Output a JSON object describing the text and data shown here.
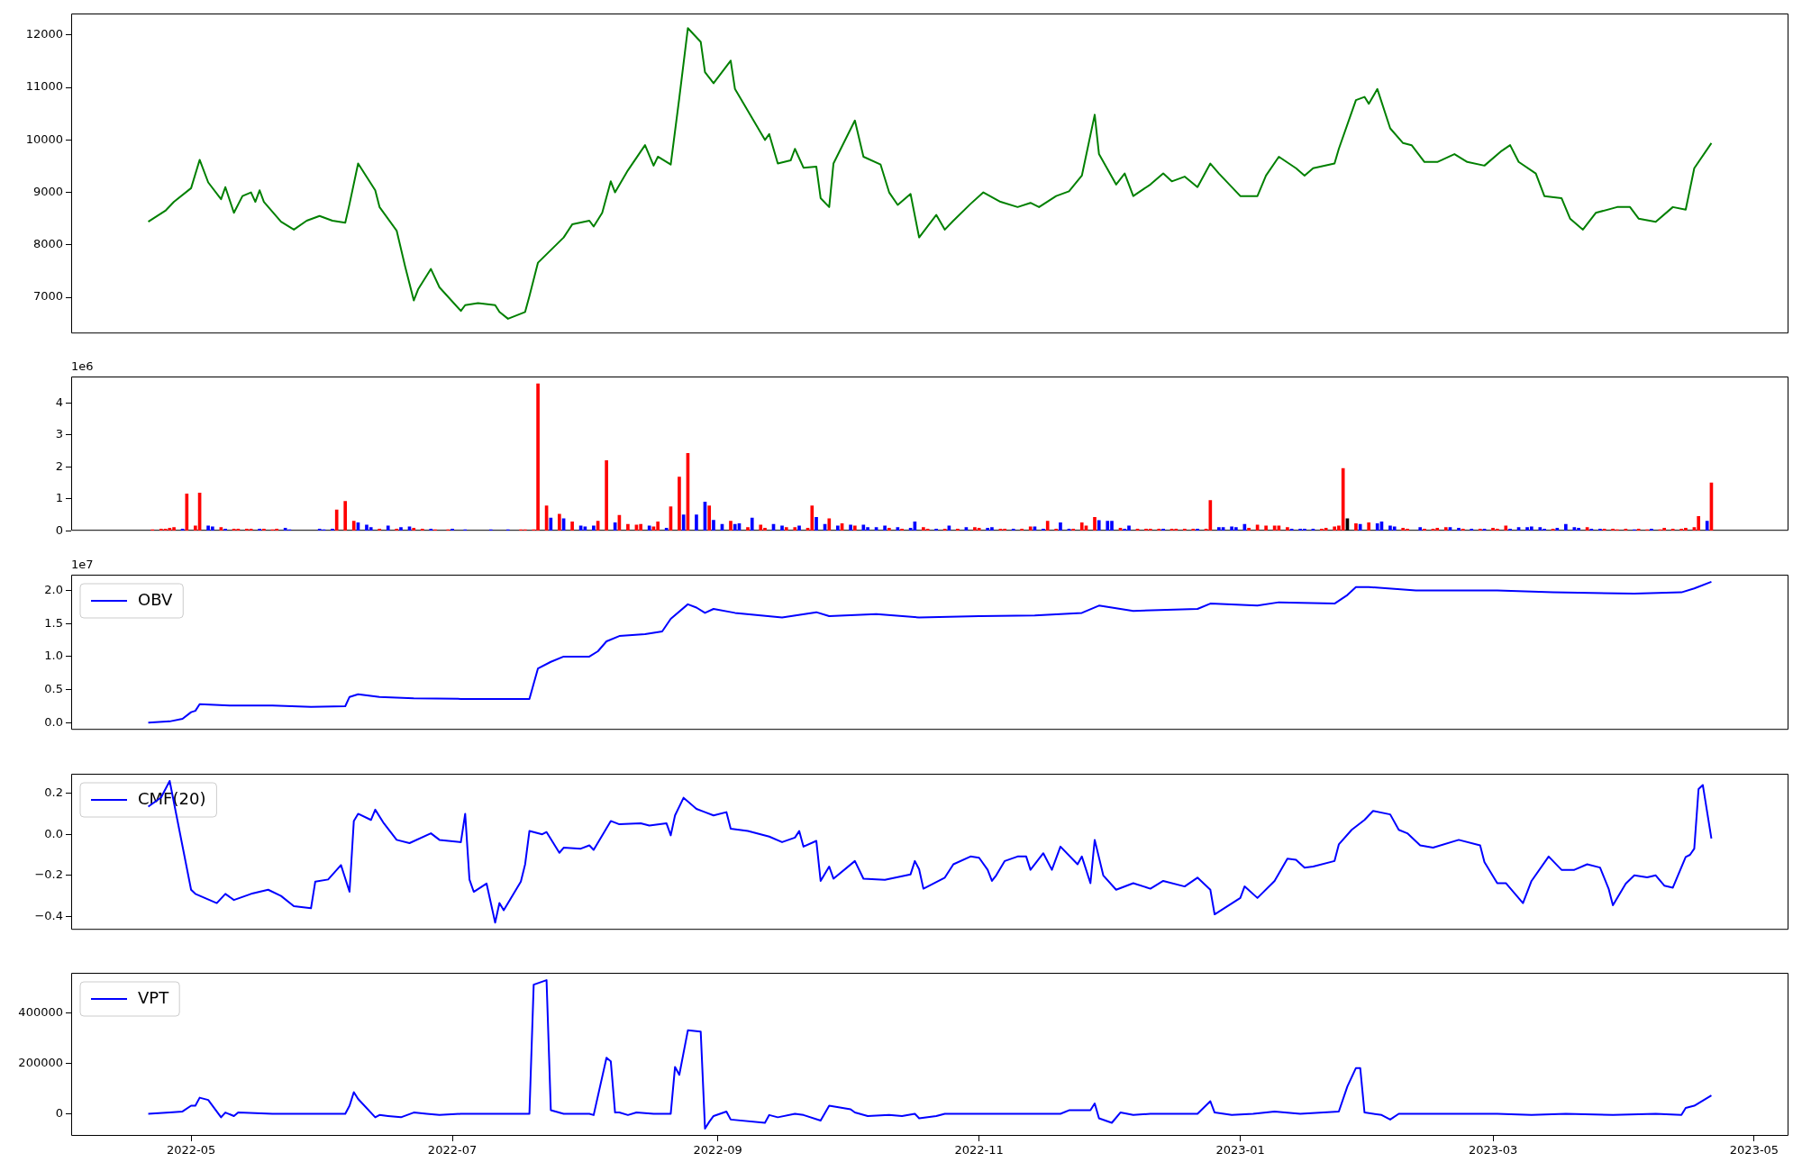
{
  "chart_data": [
    {
      "type": "line",
      "tick_labels": "y",
      "xlim": [
        "2022-04-03",
        "2023-05-09"
      ],
      "ylim": [
        6310,
        12410
      ],
      "yticks": [
        7000,
        8000,
        9000,
        10000,
        11000,
        12000
      ],
      "x": [
        "2022-04-21",
        "2022-04-25",
        "2022-04-27",
        "2022-05-01",
        "2022-05-03",
        "2022-05-05",
        "2022-05-08",
        "2022-05-09",
        "2022-05-11",
        "2022-05-13",
        "2022-05-15",
        "2022-05-16",
        "2022-05-17",
        "2022-05-18",
        "2022-05-22",
        "2022-05-25",
        "2022-05-28",
        "2022-05-31",
        "2022-06-03",
        "2022-06-06",
        "2022-06-07",
        "2022-06-09",
        "2022-06-13",
        "2022-06-14",
        "2022-06-18",
        "2022-06-20",
        "2022-06-22",
        "2022-06-23",
        "2022-06-26",
        "2022-06-28",
        "2022-07-03",
        "2022-07-04",
        "2022-07-07",
        "2022-07-11",
        "2022-07-12",
        "2022-07-14",
        "2022-07-18",
        "2022-07-19",
        "2022-07-21",
        "2022-07-24",
        "2022-07-27",
        "2022-07-29",
        "2022-08-02",
        "2022-08-03",
        "2022-08-05",
        "2022-08-07",
        "2022-08-08",
        "2022-08-11",
        "2022-08-15",
        "2022-08-17",
        "2022-08-18",
        "2022-08-21",
        "2022-08-23",
        "2022-08-25",
        "2022-08-28",
        "2022-08-29",
        "2022-08-31",
        "2022-09-04",
        "2022-09-05",
        "2022-09-12",
        "2022-09-13",
        "2022-09-15",
        "2022-09-18",
        "2022-09-19",
        "2022-09-21",
        "2022-09-24",
        "2022-09-25",
        "2022-09-27",
        "2022-09-28",
        "2022-10-03",
        "2022-10-05",
        "2022-10-09",
        "2022-10-11",
        "2022-10-13",
        "2022-10-16",
        "2022-10-18",
        "2022-10-22",
        "2022-10-24",
        "2022-10-26",
        "2022-10-30",
        "2022-11-02",
        "2022-11-06",
        "2022-11-10",
        "2022-11-13",
        "2022-11-15",
        "2022-11-19",
        "2022-11-22",
        "2022-11-25",
        "2022-11-28",
        "2022-11-29",
        "2022-12-03",
        "2022-12-05",
        "2022-12-07",
        "2022-12-11",
        "2022-12-14",
        "2022-12-16",
        "2022-12-19",
        "2022-12-22",
        "2022-12-25",
        "2022-12-27",
        "2023-01-01",
        "2023-01-05",
        "2023-01-07",
        "2023-01-10",
        "2023-01-14",
        "2023-01-16",
        "2023-01-18",
        "2023-01-23",
        "2023-01-24",
        "2023-01-28",
        "2023-01-30",
        "2023-01-31",
        "2023-02-02",
        "2023-02-05",
        "2023-02-08",
        "2023-02-10",
        "2023-02-13",
        "2023-02-16",
        "2023-02-20",
        "2023-02-23",
        "2023-02-27",
        "2023-03-03",
        "2023-03-05",
        "2023-03-07",
        "2023-03-11",
        "2023-03-13",
        "2023-03-17",
        "2023-03-19",
        "2023-03-22",
        "2023-03-25",
        "2023-03-30",
        "2023-04-02",
        "2023-04-04",
        "2023-04-08",
        "2023-04-12",
        "2023-04-15",
        "2023-04-17",
        "2023-04-21"
      ],
      "color": "#008000",
      "values": [
        8440,
        8650,
        8820,
        9080,
        9620,
        9190,
        8870,
        9100,
        8610,
        8930,
        9000,
        8820,
        9040,
        8820,
        8440,
        8290,
        8460,
        8550,
        8460,
        8420,
        8780,
        9550,
        9040,
        8720,
        8270,
        7580,
        6940,
        7150,
        7540,
        7190,
        6740,
        6850,
        6890,
        6850,
        6720,
        6590,
        6720,
        7020,
        7660,
        7900,
        8140,
        8390,
        8460,
        8350,
        8610,
        9210,
        9000,
        9420,
        9900,
        9510,
        9680,
        9530,
        10800,
        12130,
        11870,
        11290,
        11080,
        11510,
        10970,
        10000,
        10110,
        9550,
        9610,
        9830,
        9470,
        9490,
        8890,
        8720,
        9550,
        10370,
        9680,
        9530,
        9000,
        8760,
        8970,
        8140,
        8570,
        8290,
        8460,
        8780,
        9000,
        8820,
        8720,
        8800,
        8720,
        8930,
        9020,
        9320,
        10480,
        9730,
        9150,
        9360,
        8930,
        9150,
        9360,
        9210,
        9300,
        9100,
        9550,
        9360,
        8930,
        8930,
        9320,
        9680,
        9460,
        9320,
        9460,
        9550,
        9830,
        10760,
        10820,
        10690,
        10970,
        10220,
        9940,
        9900,
        9580,
        9580,
        9730,
        9580,
        9510,
        9790,
        9900,
        9580,
        9360,
        8930,
        8890,
        8500,
        8290,
        8610,
        8720,
        8720,
        8500,
        8440,
        8720,
        8670,
        9460,
        9940
      ]
    },
    {
      "type": "bar",
      "tick_labels": "y",
      "annotations": [
        "1e6"
      ],
      "xlim": [
        "2022-04-03",
        "2023-05-09"
      ],
      "ylim": [
        0,
        4.83
      ],
      "yticks": [
        0,
        1,
        2,
        3,
        4
      ],
      "x": [
        "2022-04-22",
        "2022-04-24",
        "2022-04-25",
        "2022-04-26",
        "2022-04-27",
        "2022-04-29",
        "2022-04-30",
        "2022-05-02",
        "2022-05-03",
        "2022-05-05",
        "2022-05-06",
        "2022-05-08",
        "2022-05-09",
        "2022-05-11",
        "2022-05-12",
        "2022-05-14",
        "2022-05-15",
        "2022-05-17",
        "2022-05-18",
        "2022-05-20",
        "2022-05-21",
        "2022-05-23",
        "2022-05-24",
        "2022-05-31",
        "2022-06-01",
        "2022-06-03",
        "2022-06-04",
        "2022-06-06",
        "2022-06-08",
        "2022-06-09",
        "2022-06-11",
        "2022-06-12",
        "2022-06-14",
        "2022-06-16",
        "2022-06-18",
        "2022-06-19",
        "2022-06-21",
        "2022-06-22",
        "2022-06-24",
        "2022-06-26",
        "2022-06-27",
        "2022-06-30",
        "2022-07-01",
        "2022-07-04",
        "2022-07-10",
        "2022-07-14",
        "2022-07-17",
        "2022-07-18",
        "2022-07-20",
        "2022-07-21",
        "2022-07-23",
        "2022-07-24",
        "2022-07-26",
        "2022-07-27",
        "2022-07-29",
        "2022-07-31",
        "2022-08-01",
        "2022-08-03",
        "2022-08-04",
        "2022-08-06",
        "2022-08-08",
        "2022-08-09",
        "2022-08-11",
        "2022-08-13",
        "2022-08-14",
        "2022-08-16",
        "2022-08-17",
        "2022-08-18",
        "2022-08-20",
        "2022-08-21",
        "2022-08-23",
        "2022-08-24",
        "2022-08-25",
        "2022-08-27",
        "2022-08-29",
        "2022-08-30",
        "2022-08-31",
        "2022-09-02",
        "2022-09-04",
        "2022-09-05",
        "2022-09-06",
        "2022-09-08",
        "2022-09-09",
        "2022-09-11",
        "2022-09-12",
        "2022-09-14",
        "2022-09-16",
        "2022-09-17",
        "2022-09-19",
        "2022-09-20",
        "2022-09-22",
        "2022-09-23",
        "2022-09-24",
        "2022-09-26",
        "2022-09-27",
        "2022-09-29",
        "2022-09-30",
        "2022-10-02",
        "2022-10-03",
        "2022-10-05",
        "2022-10-06",
        "2022-10-08",
        "2022-10-10",
        "2022-10-11",
        "2022-10-13",
        "2022-10-14",
        "2022-10-16",
        "2022-10-17",
        "2022-10-19",
        "2022-10-20",
        "2022-10-22",
        "2022-10-24",
        "2022-10-25",
        "2022-10-27",
        "2022-10-29",
        "2022-10-31",
        "2022-11-01",
        "2022-11-03",
        "2022-11-04",
        "2022-11-06",
        "2022-11-07",
        "2022-11-09",
        "2022-11-11",
        "2022-11-13",
        "2022-11-14",
        "2022-11-16",
        "2022-11-17",
        "2022-11-19",
        "2022-11-20",
        "2022-11-22",
        "2022-11-23",
        "2022-11-25",
        "2022-11-26",
        "2022-11-28",
        "2022-11-29",
        "2022-12-01",
        "2022-12-02",
        "2022-12-04",
        "2022-12-05",
        "2022-12-06",
        "2022-12-08",
        "2022-12-10",
        "2022-12-11",
        "2022-12-13",
        "2022-12-14",
        "2022-12-16",
        "2022-12-17",
        "2022-12-19",
        "2022-12-21",
        "2022-12-22",
        "2022-12-24",
        "2022-12-25",
        "2022-12-27",
        "2022-12-28",
        "2022-12-30",
        "2022-12-31",
        "2023-01-02",
        "2023-01-03",
        "2023-01-05",
        "2023-01-07",
        "2023-01-09",
        "2023-01-10",
        "2023-01-12",
        "2023-01-13",
        "2023-01-15",
        "2023-01-16",
        "2023-01-18",
        "2023-01-20",
        "2023-01-21",
        "2023-01-23",
        "2023-01-24",
        "2023-01-25",
        "2023-01-26",
        "2023-01-28",
        "2023-01-29",
        "2023-01-31",
        "2023-02-02",
        "2023-02-03",
        "2023-02-05",
        "2023-02-06",
        "2023-02-08",
        "2023-02-09",
        "2023-02-12",
        "2023-02-13",
        "2023-02-15",
        "2023-02-16",
        "2023-02-18",
        "2023-02-19",
        "2023-02-21",
        "2023-02-22",
        "2023-02-24",
        "2023-02-26",
        "2023-02-27",
        "2023-03-01",
        "2023-03-02",
        "2023-03-04",
        "2023-03-05",
        "2023-03-07",
        "2023-03-09",
        "2023-03-10",
        "2023-03-12",
        "2023-03-13",
        "2023-03-15",
        "2023-03-16",
        "2023-03-18",
        "2023-03-20",
        "2023-03-21",
        "2023-03-23",
        "2023-03-24",
        "2023-03-26",
        "2023-03-27",
        "2023-03-29",
        "2023-03-30",
        "2023-04-01",
        "2023-04-03",
        "2023-04-04",
        "2023-04-06",
        "2023-04-07",
        "2023-04-09",
        "2023-04-10",
        "2023-04-12",
        "2023-04-14",
        "2023-04-15",
        "2023-04-17",
        "2023-04-18",
        "2023-04-20",
        "2023-04-21"
      ],
      "values": [
        0.03,
        0.05,
        0.05,
        0.08,
        0.1,
        0.05,
        1.15,
        0.15,
        1.18,
        0.15,
        0.12,
        0.1,
        0.05,
        0.05,
        0.05,
        0.05,
        0.05,
        0.05,
        0.05,
        0.03,
        0.05,
        0.08,
        0.03,
        0.05,
        0.03,
        0.05,
        0.65,
        0.92,
        0.3,
        0.25,
        0.18,
        0.1,
        0.05,
        0.15,
        0.05,
        0.1,
        0.12,
        0.08,
        0.05,
        0.05,
        0.03,
        0.03,
        0.05,
        0.03,
        0.03,
        0.03,
        0.03,
        0.03,
        0.03,
        4.6,
        0.78,
        0.4,
        0.52,
        0.38,
        0.28,
        0.15,
        0.12,
        0.15,
        0.3,
        2.2,
        0.25,
        0.48,
        0.2,
        0.18,
        0.2,
        0.15,
        0.12,
        0.28,
        0.08,
        0.75,
        1.68,
        0.5,
        2.42,
        0.5,
        0.9,
        0.78,
        0.33,
        0.2,
        0.3,
        0.2,
        0.22,
        0.1,
        0.4,
        0.18,
        0.08,
        0.2,
        0.15,
        0.1,
        0.1,
        0.15,
        0.08,
        0.78,
        0.42,
        0.2,
        0.38,
        0.15,
        0.22,
        0.18,
        0.15,
        0.18,
        0.1,
        0.1,
        0.15,
        0.08,
        0.1,
        0.05,
        0.08,
        0.28,
        0.1,
        0.05,
        0.05,
        0.05,
        0.15,
        0.05,
        0.1,
        0.1,
        0.08,
        0.08,
        0.1,
        0.05,
        0.05,
        0.05,
        0.05,
        0.12,
        0.12,
        0.05,
        0.3,
        0.05,
        0.25,
        0.05,
        0.05,
        0.25,
        0.15,
        0.42,
        0.32,
        0.3,
        0.3,
        0.08,
        0.05,
        0.15,
        0.05,
        0.05,
        0.05,
        0.05,
        0.05,
        0.05,
        0.05,
        0.05,
        0.05,
        0.05,
        0.05,
        0.95,
        0.1,
        0.1,
        0.12,
        0.1,
        0.2,
        0.08,
        0.18,
        0.15,
        0.15,
        0.15,
        0.1,
        0.05,
        0.05,
        0.05,
        0.05,
        0.05,
        0.08,
        0.12,
        0.15,
        1.95,
        0.38,
        0.22,
        0.2,
        0.25,
        0.22,
        0.28,
        0.15,
        0.12,
        0.08,
        0.05,
        0.1,
        0.05,
        0.05,
        0.08,
        0.1,
        0.1,
        0.08,
        0.05,
        0.05,
        0.05,
        0.05,
        0.08,
        0.05,
        0.15,
        0.05,
        0.1,
        0.1,
        0.12,
        0.1,
        0.05,
        0.05,
        0.08,
        0.2,
        0.1,
        0.08,
        0.1,
        0.05,
        0.05,
        0.05,
        0.05,
        0.03,
        0.05,
        0.03,
        0.05,
        0.03,
        0.05,
        0.03,
        0.08,
        0.05,
        0.05,
        0.08,
        0.1,
        0.45,
        0.3,
        1.5
      ],
      "colors": [
        "#ff0000",
        "#ff0000",
        "#ff0000",
        "#ff0000",
        "#ff0000",
        "#0000ff",
        "#ff0000",
        "#ff0000",
        "#ff0000",
        "#0000ff",
        "#0000ff",
        "#ff0000",
        "#0000ff",
        "#ff0000",
        "#ff0000",
        "#ff0000",
        "#ff0000",
        "#0000ff",
        "#ff0000",
        "#ff0000",
        "#ff0000",
        "#0000ff",
        "#0000ff",
        "#0000ff",
        "#0000ff",
        "#0000ff",
        "#ff0000",
        "#ff0000",
        "#ff0000",
        "#0000ff",
        "#0000ff",
        "#0000ff",
        "#ff0000",
        "#0000ff",
        "#ff0000",
        "#0000ff",
        "#0000ff",
        "#ff0000",
        "#ff0000",
        "#0000ff",
        "#ff0000",
        "#ff0000",
        "#0000ff",
        "#0000ff",
        "#0000ff",
        "#0000ff",
        "#ff0000",
        "#ff0000",
        "#ff0000",
        "#ff0000",
        "#ff0000",
        "#0000ff",
        "#ff0000",
        "#0000ff",
        "#ff0000",
        "#0000ff",
        "#0000ff",
        "#0000ff",
        "#ff0000",
        "#ff0000",
        "#0000ff",
        "#ff0000",
        "#ff0000",
        "#ff0000",
        "#ff0000",
        "#0000ff",
        "#ff0000",
        "#ff0000",
        "#0000ff",
        "#ff0000",
        "#ff0000",
        "#0000ff",
        "#ff0000",
        "#0000ff",
        "#0000ff",
        "#ff0000",
        "#0000ff",
        "#0000ff",
        "#ff0000",
        "#0000ff",
        "#0000ff",
        "#ff0000",
        "#0000ff",
        "#ff0000",
        "#ff0000",
        "#0000ff",
        "#0000ff",
        "#ff0000",
        "#ff0000",
        "#0000ff",
        "#ff0000",
        "#ff0000",
        "#0000ff",
        "#0000ff",
        "#ff0000",
        "#0000ff",
        "#ff0000",
        "#0000ff",
        "#ff0000",
        "#0000ff",
        "#0000ff",
        "#0000ff",
        "#0000ff",
        "#ff0000",
        "#0000ff",
        "#ff0000",
        "#0000ff",
        "#0000ff",
        "#ff0000",
        "#ff0000",
        "#0000ff",
        "#ff0000",
        "#0000ff",
        "#ff0000",
        "#0000ff",
        "#ff0000",
        "#ff0000",
        "#0000ff",
        "#0000ff",
        "#ff0000",
        "#ff0000",
        "#0000ff",
        "#ff0000",
        "#ff0000",
        "#0000ff",
        "#0000ff",
        "#ff0000",
        "#ff0000",
        "#0000ff",
        "#0000ff",
        "#ff0000",
        "#ff0000",
        "#ff0000",
        "#ff0000",
        "#0000ff",
        "#0000ff",
        "#0000ff",
        "#ff0000",
        "#0000ff",
        "#0000ff",
        "#ff0000",
        "#ff0000",
        "#ff0000",
        "#ff0000",
        "#0000ff",
        "#ff0000",
        "#ff0000",
        "#ff0000",
        "#ff0000",
        "#0000ff",
        "#ff0000",
        "#ff0000",
        "#0000ff",
        "#0000ff",
        "#0000ff",
        "#0000ff",
        "#0000ff",
        "#ff0000",
        "#ff0000",
        "#ff0000",
        "#ff0000",
        "#ff0000",
        "#ff0000",
        "#0000ff",
        "#0000ff",
        "#0000ff",
        "#0000ff",
        "#ff0000",
        "#ff0000",
        "#ff0000",
        "#ff0000",
        "#ff0000",
        "#000000",
        "#ff0000",
        "#0000ff",
        "#ff0000",
        "#0000ff",
        "#0000ff",
        "#0000ff",
        "#0000ff",
        "#ff0000",
        "#ff0000",
        "#0000ff",
        "#ff0000",
        "#ff0000",
        "#ff0000",
        "#ff0000",
        "#0000ff",
        "#0000ff",
        "#ff0000",
        "#0000ff",
        "#ff0000",
        "#0000ff",
        "#ff0000",
        "#ff0000",
        "#ff0000",
        "#0000ff",
        "#0000ff",
        "#0000ff",
        "#0000ff",
        "#0000ff",
        "#0000ff",
        "#ff0000",
        "#0000ff",
        "#0000ff",
        "#0000ff",
        "#0000ff",
        "#ff0000",
        "#0000ff",
        "#0000ff",
        "#ff0000",
        "#ff0000",
        "#ff0000",
        "#ff0000",
        "#0000ff",
        "#ff0000",
        "#ff0000",
        "#0000ff",
        "#ff0000",
        "#ff0000",
        "#ff0000",
        "#ff0000",
        "#ff0000",
        "#ff0000",
        "#ff0000",
        "#0000ff",
        "#ff0000"
      ]
    },
    {
      "type": "line",
      "tick_labels": "y",
      "legend": "top left",
      "annotations": [
        "1e7"
      ],
      "xlim": [
        "2022-04-03",
        "2023-05-09"
      ],
      "ylim": [
        -0.107,
        2.237
      ],
      "yticks": [
        {
          "value": 0,
          "label": "0.0"
        },
        0.5,
        {
          "value": 1,
          "label": "1.0"
        },
        1.5,
        {
          "value": 2,
          "label": "2.0"
        }
      ],
      "x": [
        "2022-04-21",
        "2022-04-26",
        "2022-04-29",
        "2022-05-01",
        "2022-05-02",
        "2022-05-03",
        "2022-05-10",
        "2022-05-20",
        "2022-05-29",
        "2022-06-06",
        "2022-06-07",
        "2022-06-09",
        "2022-06-14",
        "2022-06-22",
        "2022-07-03",
        "2022-07-14",
        "2022-07-19",
        "2022-07-21",
        "2022-07-24",
        "2022-07-27",
        "2022-08-02",
        "2022-08-04",
        "2022-08-06",
        "2022-08-09",
        "2022-08-15",
        "2022-08-19",
        "2022-08-21",
        "2022-08-25",
        "2022-08-27",
        "2022-08-29",
        "2022-08-31",
        "2022-09-05",
        "2022-09-16",
        "2022-09-24",
        "2022-09-27",
        "2022-10-08",
        "2022-10-18",
        "2022-11-01",
        "2022-11-14",
        "2022-11-25",
        "2022-11-29",
        "2022-12-07",
        "2022-12-22",
        "2022-12-25",
        "2023-01-05",
        "2023-01-10",
        "2023-01-23",
        "2023-01-26",
        "2023-01-28",
        "2023-01-31",
        "2023-02-11",
        "2023-03-02",
        "2023-03-15",
        "2023-04-03",
        "2023-04-14",
        "2023-04-17",
        "2023-04-21"
      ],
      "series": [
        {
          "name": "OBV",
          "color": "#0000ff",
          "values": [
            0,
            0.02,
            0.06,
            0.16,
            0.18,
            0.28,
            0.26,
            0.26,
            0.24,
            0.25,
            0.39,
            0.43,
            0.39,
            0.37,
            0.36,
            0.36,
            0.36,
            0.82,
            0.92,
            1.0,
            1.0,
            1.08,
            1.23,
            1.31,
            1.34,
            1.38,
            1.57,
            1.79,
            1.74,
            1.66,
            1.72,
            1.66,
            1.59,
            1.67,
            1.61,
            1.64,
            1.59,
            1.61,
            1.62,
            1.66,
            1.77,
            1.69,
            1.72,
            1.8,
            1.77,
            1.82,
            1.8,
            1.93,
            2.05,
            2.05,
            2.0,
            2.0,
            1.97,
            1.95,
            1.97,
            2.03,
            2.13
          ]
        }
      ]
    },
    {
      "type": "line",
      "tick_labels": "y",
      "legend": "top left",
      "xlim": [
        "2022-04-03",
        "2023-05-09"
      ],
      "ylim": [
        -0.465,
        0.295
      ],
      "yticks": [
        {
          "value": -0.4,
          "label": "−0.4"
        },
        {
          "value": -0.2,
          "label": "−0.2"
        },
        {
          "value": 0,
          "label": "0.0"
        },
        {
          "value": 0.2,
          "label": "0.2"
        }
      ],
      "x": [
        "2022-04-21",
        "2022-04-24",
        "2022-04-26",
        "2022-05-01",
        "2022-05-02",
        "2022-05-07",
        "2022-05-09",
        "2022-05-11",
        "2022-05-15",
        "2022-05-19",
        "2022-05-22",
        "2022-05-25",
        "2022-05-29",
        "2022-05-30",
        "2022-06-02",
        "2022-06-05",
        "2022-06-07",
        "2022-06-08",
        "2022-06-09",
        "2022-06-12",
        "2022-06-13",
        "2022-06-15",
        "2022-06-18",
        "2022-06-21",
        "2022-06-26",
        "2022-06-28",
        "2022-07-03",
        "2022-07-04",
        "2022-07-05",
        "2022-07-06",
        "2022-07-09",
        "2022-07-11",
        "2022-07-12",
        "2022-07-13",
        "2022-07-17",
        "2022-07-18",
        "2022-07-19",
        "2022-07-22",
        "2022-07-23",
        "2022-07-26",
        "2022-07-27",
        "2022-07-31",
        "2022-08-02",
        "2022-08-03",
        "2022-08-07",
        "2022-08-09",
        "2022-08-14",
        "2022-08-16",
        "2022-08-20",
        "2022-08-21",
        "2022-08-22",
        "2022-08-24",
        "2022-08-27",
        "2022-08-29",
        "2022-08-31",
        "2022-09-03",
        "2022-09-04",
        "2022-09-08",
        "2022-09-13",
        "2022-09-16",
        "2022-09-19",
        "2022-09-20",
        "2022-09-21",
        "2022-09-24",
        "2022-09-25",
        "2022-09-27",
        "2022-09-28",
        "2022-10-03",
        "2022-10-05",
        "2022-10-10",
        "2022-10-16",
        "2022-10-17",
        "2022-10-18",
        "2022-10-19",
        "2022-10-24",
        "2022-10-26",
        "2022-10-30",
        "2022-11-01",
        "2022-11-03",
        "2022-11-04",
        "2022-11-05",
        "2022-11-07",
        "2022-11-10",
        "2022-11-12",
        "2022-11-13",
        "2022-11-16",
        "2022-11-18",
        "2022-11-20",
        "2022-11-24",
        "2022-11-25",
        "2022-11-27",
        "2022-11-28",
        "2022-11-30",
        "2022-12-03",
        "2022-12-07",
        "2022-12-11",
        "2022-12-14",
        "2022-12-19",
        "2022-12-22",
        "2022-12-25",
        "2022-12-26",
        "2023-01-01",
        "2023-01-02",
        "2023-01-05",
        "2023-01-09",
        "2023-01-12",
        "2023-01-14",
        "2023-01-16",
        "2023-01-18",
        "2023-01-23",
        "2023-01-24",
        "2023-01-27",
        "2023-01-30",
        "2023-02-01",
        "2023-02-05",
        "2023-02-07",
        "2023-02-09",
        "2023-02-12",
        "2023-02-15",
        "2023-02-21",
        "2023-02-26",
        "2023-02-27",
        "2023-03-02",
        "2023-03-04",
        "2023-03-08",
        "2023-03-10",
        "2023-03-14",
        "2023-03-17",
        "2023-03-20",
        "2023-03-23",
        "2023-03-26",
        "2023-03-28",
        "2023-03-29",
        "2023-04-01",
        "2023-04-03",
        "2023-04-06",
        "2023-04-08",
        "2023-04-10",
        "2023-04-12",
        "2023-04-15",
        "2023-04-16",
        "2023-04-17",
        "2023-04-18",
        "2023-04-19",
        "2023-04-21"
      ],
      "series": [
        {
          "name": "CMF(20)",
          "color": "#0000ff",
          "values": [
            0.135,
            0.18,
            0.26,
            -0.27,
            -0.29,
            -0.335,
            -0.29,
            -0.32,
            -0.29,
            -0.27,
            -0.3,
            -0.35,
            -0.36,
            -0.23,
            -0.22,
            -0.15,
            -0.28,
            0.065,
            0.1,
            0.07,
            0.12,
            0.054,
            -0.027,
            -0.043,
            0.005,
            -0.027,
            -0.038,
            0.1,
            -0.22,
            -0.28,
            -0.24,
            -0.43,
            -0.335,
            -0.37,
            -0.23,
            -0.146,
            0.016,
            0,
            0.011,
            -0.09,
            -0.065,
            -0.07,
            -0.054,
            -0.076,
            0.065,
            0.049,
            0.054,
            0.043,
            0.054,
            -0.005,
            0.092,
            0.178,
            0.124,
            0.108,
            0.092,
            0.108,
            0.027,
            0.016,
            -0.011,
            -0.038,
            -0.016,
            0.016,
            -0.06,
            -0.032,
            -0.227,
            -0.157,
            -0.216,
            -0.13,
            -0.216,
            -0.222,
            -0.195,
            -0.13,
            -0.17,
            -0.265,
            -0.211,
            -0.146,
            -0.108,
            -0.114,
            -0.173,
            -0.227,
            -0.2,
            -0.13,
            -0.108,
            -0.108,
            -0.173,
            -0.092,
            -0.173,
            -0.06,
            -0.146,
            -0.108,
            -0.238,
            -0.027,
            -0.2,
            -0.27,
            -0.238,
            -0.265,
            -0.227,
            -0.254,
            -0.211,
            -0.27,
            -0.39,
            -0.31,
            -0.254,
            -0.31,
            -0.227,
            -0.119,
            -0.124,
            -0.162,
            -0.157,
            -0.13,
            -0.049,
            0.022,
            0.07,
            0.114,
            0.097,
            0.022,
            0.005,
            -0.054,
            -0.065,
            -0.027,
            -0.054,
            -0.135,
            -0.238,
            -0.238,
            -0.335,
            -0.227,
            -0.108,
            -0.173,
            -0.173,
            -0.146,
            -0.162,
            -0.265,
            -0.346,
            -0.24,
            -0.2,
            -0.21,
            -0.2,
            -0.25,
            -0.26,
            -0.11,
            -0.1,
            -0.07,
            0.22,
            0.24,
            -0.02
          ]
        }
      ]
    },
    {
      "type": "line",
      "legend": "top left",
      "xlim": [
        "2022-04-03",
        "2023-05-09"
      ],
      "xticks": [
        "2022-05",
        "2022-07",
        "2022-09",
        "2022-11",
        "2023-01",
        "2023-03",
        "2023-05"
      ],
      "ylim": [
        -88000,
        561000
      ],
      "yticks": [
        0,
        200000,
        400000
      ],
      "x": [
        "2022-04-21",
        "2022-04-26",
        "2022-04-29",
        "2022-05-01",
        "2022-05-02",
        "2022-05-03",
        "2022-05-05",
        "2022-05-08",
        "2022-05-09",
        "2022-05-11",
        "2022-05-12",
        "2022-05-20",
        "2022-05-26",
        "2022-06-06",
        "2022-06-07",
        "2022-06-08",
        "2022-06-09",
        "2022-06-13",
        "2022-06-14",
        "2022-06-16",
        "2022-06-19",
        "2022-06-22",
        "2022-06-25",
        "2022-06-28",
        "2022-07-03",
        "2022-07-19",
        "2022-07-20",
        "2022-07-23",
        "2022-07-24",
        "2022-07-27",
        "2022-08-02",
        "2022-08-03",
        "2022-08-06",
        "2022-08-07",
        "2022-08-08",
        "2022-08-09",
        "2022-08-11",
        "2022-08-13",
        "2022-08-17",
        "2022-08-21",
        "2022-08-22",
        "2022-08-23",
        "2022-08-25",
        "2022-08-28",
        "2022-08-29",
        "2022-08-30",
        "2022-08-31",
        "2022-09-03",
        "2022-09-04",
        "2022-09-12",
        "2022-09-13",
        "2022-09-15",
        "2022-09-19",
        "2022-09-21",
        "2022-09-25",
        "2022-09-27",
        "2022-10-02",
        "2022-10-03",
        "2022-10-06",
        "2022-10-11",
        "2022-10-14",
        "2022-10-17",
        "2022-10-18",
        "2022-10-22",
        "2022-10-24",
        "2022-11-06",
        "2022-11-20",
        "2022-11-22",
        "2022-11-27",
        "2022-11-28",
        "2022-11-29",
        "2022-12-02",
        "2022-12-04",
        "2022-12-07",
        "2022-12-11",
        "2022-12-22",
        "2022-12-25",
        "2022-12-26",
        "2022-12-30",
        "2023-01-04",
        "2023-01-09",
        "2023-01-15",
        "2023-01-24",
        "2023-01-26",
        "2023-01-28",
        "2023-01-29",
        "2023-01-30",
        "2023-02-03",
        "2023-02-05",
        "2023-02-07",
        "2023-03-02",
        "2023-03-10",
        "2023-03-18",
        "2023-03-29",
        "2023-04-08",
        "2023-04-14",
        "2023-04-15",
        "2023-04-17",
        "2023-04-21"
      ],
      "series": [
        {
          "name": "VPT",
          "color": "#0000ff",
          "values": [
            0,
            5000,
            9000,
            32000,
            32000,
            64000,
            55000,
            -14000,
            5000,
            -9000,
            5000,
            0,
            0,
            0,
            32000,
            86000,
            59000,
            -14000,
            -5000,
            -9000,
            -14000,
            5000,
            0,
            -5000,
            0,
            0,
            514000,
            532000,
            14000,
            0,
            0,
            -5000,
            223000,
            209000,
            5000,
            5000,
            -5000,
            5000,
            0,
            0,
            186000,
            155000,
            332000,
            327000,
            -59000,
            -32000,
            -9000,
            9000,
            -23000,
            -36000,
            -5000,
            -14000,
            0,
            -5000,
            -27000,
            32000,
            18000,
            5000,
            -9000,
            -5000,
            -9000,
            0,
            -18000,
            -9000,
            0,
            0,
            0,
            14000,
            14000,
            41000,
            -18000,
            -36000,
            5000,
            -5000,
            0,
            0,
            50000,
            5000,
            -5000,
            0,
            9000,
            0,
            9000,
            109000,
            182000,
            182000,
            5000,
            -5000,
            -23000,
            0,
            0,
            -5000,
            0,
            -5000,
            0,
            -5000,
            23000,
            32000,
            73000
          ]
        }
      ]
    }
  ]
}
